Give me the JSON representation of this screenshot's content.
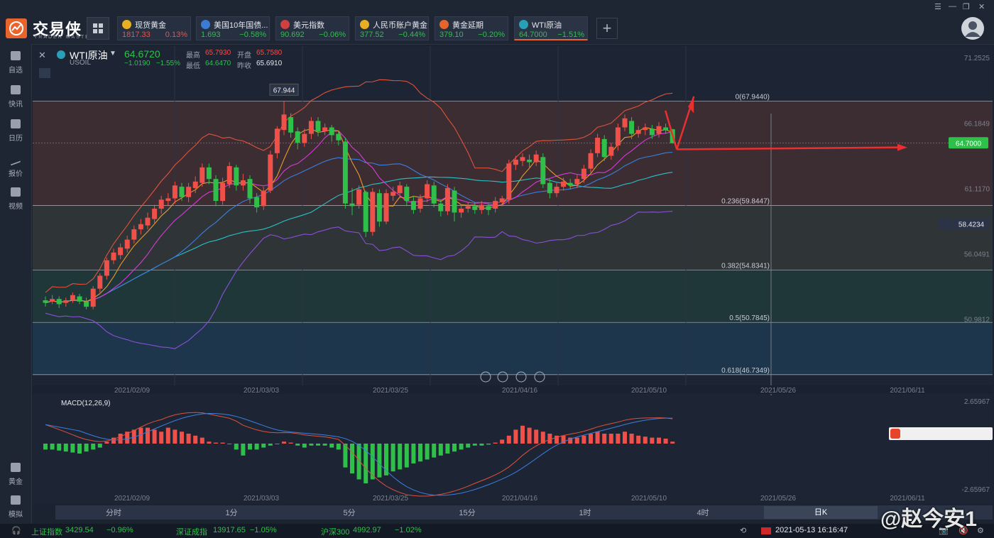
{
  "app": {
    "name": "交易侠",
    "sub": "TRADER MASTER"
  },
  "tabs": [
    {
      "name": "现货黄金",
      "price": "1817.33",
      "change": "0.13%",
      "dir": "up",
      "icon_color": "#e8b020"
    },
    {
      "name": "美国10年国债...",
      "price": "1.693",
      "change": "−0.58%",
      "dir": "down",
      "icon_color": "#3a7bd5"
    },
    {
      "name": "美元指数",
      "price": "90.692",
      "change": "−0.06%",
      "dir": "down",
      "icon_color": "#d04040"
    },
    {
      "name": "人民币账户黄金",
      "price": "377.52",
      "change": "−0.44%",
      "dir": "down",
      "icon_color": "#e8b020"
    },
    {
      "name": "黄金延期",
      "price": "379.10",
      "change": "−0.20%",
      "dir": "down",
      "icon_color": "#e8642c"
    },
    {
      "name": "WTI原油",
      "price": "64.7000",
      "change": "−1.51%",
      "dir": "down",
      "icon_color": "#28a0b8"
    }
  ],
  "sidebar": [
    {
      "label": "自选",
      "icon": "bookmark-icon"
    },
    {
      "label": "快讯",
      "icon": "news-icon"
    },
    {
      "label": "日历",
      "icon": "calendar-icon"
    },
    {
      "label": "报价",
      "icon": "trend-icon"
    },
    {
      "label": "视频",
      "icon": "video-icon"
    },
    {
      "label": "黄金",
      "icon": "gold-icon"
    },
    {
      "label": "模拟",
      "icon": "wallet-icon"
    }
  ],
  "quote": {
    "title": "WTI原油",
    "symbol": "USOIL",
    "price": "64.6720",
    "change": "−1.0190",
    "change_pct": "−1.55%",
    "high_label": "最高",
    "high": "65.7930",
    "open_label": "开盘",
    "open": "65.7580",
    "low_label": "最低",
    "low": "64.6470",
    "prev_label": "昨收",
    "prev": "65.6910"
  },
  "chart_data": {
    "type": "candlestick",
    "ylim": [
      45.9,
      72.2
    ],
    "y_ticks": [
      "71.2525",
      "66.1849",
      "61.1170",
      "56.0491",
      "50.9812"
    ],
    "x_ticks": [
      "2021/02/09",
      "2021/03/03",
      "2021/03/25",
      "2021/04/16",
      "2021/05/10",
      "2021/05/26",
      "2021/06/11"
    ],
    "high_marker": "67.944",
    "current_price": "64.7000",
    "alert_price": "58.4234",
    "fib_levels": [
      {
        "label": "0(67.9440)",
        "value": 67.944
      },
      {
        "label": "0.236(59.8447)",
        "value": 59.8447
      },
      {
        "label": "0.382(54.8341)",
        "value": 54.8341
      },
      {
        "label": "0.5(50.7845)",
        "value": 50.7845
      },
      {
        "label": "0.618(46.7349)",
        "value": 46.7349
      }
    ],
    "candles": [
      [
        52.5,
        52.3,
        52.8,
        52.0
      ],
      [
        52.4,
        52.6,
        52.9,
        52.2
      ],
      [
        52.6,
        52.2,
        52.8,
        51.9
      ],
      [
        52.3,
        52.5,
        52.7,
        52.0
      ],
      [
        52.5,
        52.9,
        53.1,
        52.3
      ],
      [
        52.8,
        52.4,
        53.0,
        52.2
      ],
      [
        52.4,
        52.0,
        52.7,
        51.8
      ],
      [
        52.0,
        53.4,
        53.6,
        51.8
      ],
      [
        53.4,
        54.4,
        54.6,
        53.1
      ],
      [
        54.4,
        55.6,
        55.8,
        54.1
      ],
      [
        55.6,
        56.2,
        56.5,
        55.3
      ],
      [
        56.0,
        56.6,
        56.9,
        55.7
      ],
      [
        56.5,
        57.2,
        57.5,
        56.2
      ],
      [
        57.2,
        58.0,
        58.3,
        56.9
      ],
      [
        58.0,
        58.4,
        58.8,
        57.6
      ],
      [
        58.3,
        58.9,
        59.3,
        58.0
      ],
      [
        58.8,
        59.6,
        59.9,
        58.4
      ],
      [
        59.6,
        60.3,
        60.6,
        59.2
      ],
      [
        60.2,
        60.4,
        60.8,
        59.8
      ],
      [
        60.4,
        61.4,
        61.7,
        60.0
      ],
      [
        61.3,
        60.5,
        61.6,
        60.2
      ],
      [
        60.5,
        61.3,
        61.6,
        60.1
      ],
      [
        61.2,
        61.7,
        62.1,
        60.8
      ],
      [
        61.6,
        62.8,
        63.1,
        61.3
      ],
      [
        62.8,
        61.9,
        63.1,
        61.5
      ],
      [
        61.9,
        60.2,
        62.2,
        59.8
      ],
      [
        60.2,
        61.6,
        62.0,
        59.9
      ],
      [
        61.5,
        62.9,
        63.2,
        61.2
      ],
      [
        62.8,
        61.4,
        63.0,
        61.0
      ],
      [
        61.4,
        61.8,
        62.3,
        61.0
      ],
      [
        61.9,
        60.4,
        62.2,
        60.0
      ],
      [
        60.5,
        59.7,
        60.8,
        59.3
      ],
      [
        59.8,
        61.0,
        61.3,
        59.5
      ],
      [
        61.0,
        63.8,
        64.1,
        60.8
      ],
      [
        63.9,
        65.8,
        66.0,
        63.5
      ],
      [
        65.7,
        66.9,
        67.944,
        65.3
      ],
      [
        66.7,
        65.5,
        67.0,
        65.1
      ],
      [
        65.6,
        64.7,
        65.9,
        64.2
      ],
      [
        64.7,
        65.4,
        65.8,
        64.4
      ],
      [
        65.4,
        66.4,
        66.7,
        65.0
      ],
      [
        66.4,
        65.6,
        66.7,
        65.2
      ],
      [
        65.6,
        65.9,
        66.2,
        65.3
      ],
      [
        65.9,
        65.3,
        66.1,
        64.8
      ],
      [
        65.4,
        64.9,
        65.6,
        64.5
      ],
      [
        64.8,
        60.0,
        65.1,
        59.6
      ],
      [
        60.0,
        59.8,
        61.2,
        59.1
      ],
      [
        59.9,
        61.1,
        61.4,
        59.6
      ],
      [
        60.9,
        57.8,
        61.0,
        57.4
      ],
      [
        57.8,
        60.9,
        61.2,
        57.5
      ],
      [
        60.8,
        58.6,
        61.1,
        58.2
      ],
      [
        58.6,
        60.8,
        61.1,
        58.4
      ],
      [
        60.6,
        60.9,
        61.3,
        60.2
      ],
      [
        60.8,
        61.4,
        61.7,
        60.4
      ],
      [
        61.3,
        60.2,
        61.5,
        59.8
      ],
      [
        60.2,
        59.5,
        60.6,
        59.2
      ],
      [
        59.6,
        60.4,
        60.7,
        59.3
      ],
      [
        60.4,
        61.5,
        61.8,
        60.1
      ],
      [
        61.4,
        60.0,
        61.7,
        59.7
      ],
      [
        60.0,
        59.4,
        60.3,
        59.0
      ],
      [
        59.4,
        61.2,
        61.5,
        59.1
      ],
      [
        61.0,
        59.3,
        61.3,
        58.6
      ],
      [
        59.3,
        59.6,
        59.9,
        58.9
      ],
      [
        59.6,
        59.8,
        60.1,
        59.3
      ],
      [
        59.8,
        59.5,
        60.1,
        59.2
      ],
      [
        59.5,
        59.9,
        60.2,
        59.2
      ],
      [
        59.8,
        59.5,
        60.0,
        59.1
      ],
      [
        59.6,
        60.2,
        60.5,
        59.3
      ],
      [
        60.1,
        60.4,
        60.6,
        59.8
      ],
      [
        60.3,
        63.1,
        63.4,
        60.0
      ],
      [
        63.0,
        63.4,
        63.7,
        62.6
      ],
      [
        63.3,
        63.6,
        63.9,
        62.9
      ],
      [
        63.4,
        63.2,
        63.8,
        62.8
      ],
      [
        63.2,
        63.8,
        64.1,
        62.9
      ],
      [
        63.6,
        61.5,
        63.9,
        61.2
      ],
      [
        61.6,
        60.8,
        61.9,
        60.4
      ],
      [
        60.8,
        61.3,
        61.6,
        60.5
      ],
      [
        61.3,
        61.7,
        62.0,
        61.0
      ],
      [
        61.6,
        61.4,
        61.9,
        61.1
      ],
      [
        61.5,
        61.9,
        62.2,
        61.2
      ],
      [
        61.9,
        62.7,
        63.0,
        61.6
      ],
      [
        62.7,
        63.9,
        64.2,
        62.4
      ],
      [
        63.9,
        65.1,
        65.4,
        63.6
      ],
      [
        65.0,
        63.6,
        65.3,
        63.3
      ],
      [
        63.7,
        64.4,
        64.7,
        63.4
      ],
      [
        64.5,
        65.9,
        66.2,
        64.1
      ],
      [
        65.9,
        66.6,
        66.9,
        65.6
      ],
      [
        66.4,
        65.4,
        66.7,
        65.0
      ],
      [
        65.4,
        65.7,
        66.0,
        65.1
      ],
      [
        65.7,
        65.9,
        66.2,
        65.3
      ],
      [
        65.8,
        65.3,
        66.1,
        65.0
      ],
      [
        65.4,
        66.0,
        66.3,
        65.1
      ],
      [
        65.9,
        65.7,
        66.2,
        65.4
      ],
      [
        65.758,
        64.672,
        65.793,
        64.647
      ]
    ],
    "macd_label": "MACD(12,26,9)",
    "macd_ticks": [
      "2.65967",
      "-2.65967"
    ],
    "macd_hist": [
      -0.3,
      -0.3,
      -0.35,
      -0.4,
      -0.45,
      -0.5,
      -0.4,
      -0.3,
      -0.2,
      0.1,
      0.3,
      0.5,
      0.6,
      0.7,
      0.8,
      0.8,
      0.7,
      0.6,
      0.8,
      0.7,
      0.6,
      0.5,
      0.4,
      0.3,
      0.1,
      0.05,
      0.05,
      0.0,
      -0.3,
      -0.6,
      -0.3,
      -0.3,
      -0.2,
      -0.1,
      0.0,
      0.1,
      0.05,
      -0.1,
      -0.2,
      -0.1,
      -0.1,
      -0.1,
      -0.2,
      -0.3,
      -1.2,
      -1.5,
      -1.8,
      -2.0,
      -1.8,
      -1.7,
      -1.6,
      -1.4,
      -1.3,
      -1.2,
      -1.0,
      -0.9,
      -0.8,
      -0.7,
      -0.6,
      -0.5,
      -0.4,
      -0.3,
      -0.2,
      -0.1,
      -0.1,
      -0.05,
      0.05,
      0.2,
      0.4,
      0.7,
      0.9,
      0.8,
      0.7,
      0.6,
      0.5,
      0.4,
      0.4,
      0.3,
      0.3,
      0.4,
      0.5,
      0.6,
      0.5,
      0.5,
      0.5,
      0.6,
      0.5,
      0.4,
      0.35,
      0.3,
      0.3,
      0.25,
      0.1
    ],
    "timeframes": [
      "分时",
      "1分",
      "5分",
      "15分",
      "1时",
      "4时",
      "日K"
    ],
    "active_timeframe": "日K"
  },
  "status": {
    "sh_label": "上证指数",
    "sh_val": "3429.54",
    "sh_chg": "−0.96%",
    "sz_label": "深证成指",
    "sz_val": "13917.65",
    "sz_chg": "−1.05%",
    "hs_label": "沪深300",
    "hs_val": "4992.97",
    "hs_chg": "−1.02%",
    "datetime": "2021-05-13 16:16:47"
  },
  "watermark": "@赵今安1"
}
